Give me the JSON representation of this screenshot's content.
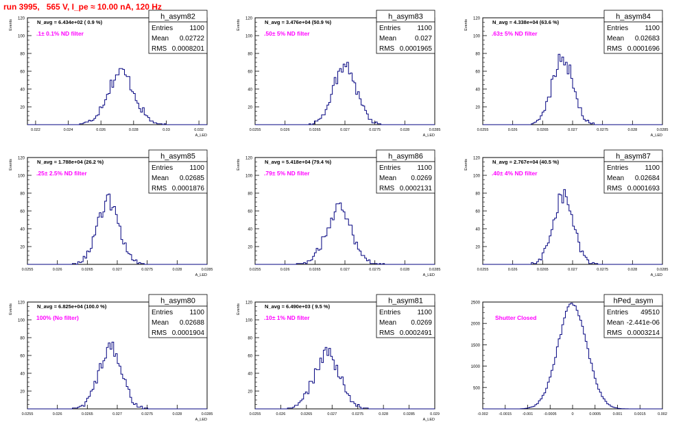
{
  "header": {
    "title": "run 3995,   565 V, I_pe ≈ 10.00 nA, 120 Hz"
  },
  "colors": {
    "histogram": "#00007f",
    "annotation": "#ff00ff",
    "title": "#ff0000"
  },
  "chart_data": [
    {
      "type": "bar",
      "title": "h_asym82",
      "ylabel": "Events",
      "xlabel": "A_LED",
      "xlim": [
        0.0215,
        0.0325
      ],
      "ylim": [
        0,
        120
      ],
      "xticks": [
        0.022,
        0.024,
        0.026,
        0.028,
        0.03,
        0.032
      ],
      "xtick_labels": [
        "0.022",
        "0.024",
        "0.026",
        "0.028",
        "0.03",
        "0.032"
      ],
      "yticks": [
        20,
        40,
        60,
        80,
        100,
        120
      ],
      "stats": {
        "entries": "1100",
        "mean": "0.02722",
        "rms": "0.0008201"
      },
      "n_avg": "N_avg = 6.434e+02 ( 0.9 %)",
      "annotation": ".1± 0.1% ND filter"
    },
    {
      "type": "bar",
      "title": "h_asym83",
      "ylabel": "Events",
      "xlabel": "A_LED",
      "xlim": [
        0.0255,
        0.0285
      ],
      "ylim": [
        0,
        120
      ],
      "xticks": [
        0.0255,
        0.026,
        0.0265,
        0.027,
        0.0275,
        0.028,
        0.0285
      ],
      "xtick_labels": [
        "0.0255",
        "0.026",
        "0.0265",
        "0.027",
        "0.0275",
        "0.028",
        "0.0285"
      ],
      "yticks": [
        20,
        40,
        60,
        80,
        100,
        120
      ],
      "stats": {
        "entries": "1100",
        "mean": "0.027",
        "rms": "0.0001965"
      },
      "n_avg": "N_avg = 3.476e+04 (50.9 %)",
      "annotation": ".50± 5% ND filter"
    },
    {
      "type": "bar",
      "title": "h_asym84",
      "ylabel": "Events",
      "xlabel": "A_LED",
      "xlim": [
        0.0255,
        0.0285
      ],
      "ylim": [
        0,
        120
      ],
      "xticks": [
        0.0255,
        0.026,
        0.0265,
        0.027,
        0.0275,
        0.028,
        0.0285
      ],
      "xtick_labels": [
        "0.0255",
        "0.026",
        "0.0265",
        "0.027",
        "0.0275",
        "0.028",
        "0.0285"
      ],
      "yticks": [
        20,
        40,
        60,
        80,
        100,
        120
      ],
      "stats": {
        "entries": "1100",
        "mean": "0.02683",
        "rms": "0.0001696"
      },
      "n_avg": "N_avg = 4.338e+04 (63.6 %)",
      "annotation": ".63± 5% ND filter"
    },
    {
      "type": "bar",
      "title": "h_asym85",
      "ylabel": "Events",
      "xlabel": "A_LED",
      "xlim": [
        0.0255,
        0.0285
      ],
      "ylim": [
        0,
        120
      ],
      "xticks": [
        0.0255,
        0.026,
        0.0265,
        0.027,
        0.0275,
        0.028,
        0.0285
      ],
      "xtick_labels": [
        "0.0255",
        "0.026",
        "0.0265",
        "0.027",
        "0.0275",
        "0.028",
        "0.0285"
      ],
      "yticks": [
        20,
        40,
        60,
        80,
        100,
        120
      ],
      "stats": {
        "entries": "1100",
        "mean": "0.02685",
        "rms": "0.0001876"
      },
      "n_avg": "N_avg = 1.788e+04 (26.2 %)",
      "annotation": ".25± 2.5% ND filter"
    },
    {
      "type": "bar",
      "title": "h_asym86",
      "ylabel": "Events",
      "xlabel": "A_LED",
      "xlim": [
        0.0255,
        0.0285
      ],
      "ylim": [
        0,
        120
      ],
      "xticks": [
        0.0255,
        0.026,
        0.0265,
        0.027,
        0.0275,
        0.028,
        0.0285
      ],
      "xtick_labels": [
        "0.0255",
        "0.026",
        "0.0265",
        "0.027",
        "0.0275",
        "0.028",
        "0.0285"
      ],
      "yticks": [
        20,
        40,
        60,
        80,
        100,
        120
      ],
      "stats": {
        "entries": "1100",
        "mean": "0.0269",
        "rms": "0.0002131"
      },
      "n_avg": "N_avg = 5.418e+04 (79.4 %)",
      "annotation": ".79± 5% ND filter"
    },
    {
      "type": "bar",
      "title": "h_asym87",
      "ylabel": "Events",
      "xlabel": "A_LED",
      "xlim": [
        0.0255,
        0.0285
      ],
      "ylim": [
        0,
        120
      ],
      "xticks": [
        0.0255,
        0.026,
        0.0265,
        0.027,
        0.0275,
        0.028,
        0.0285
      ],
      "xtick_labels": [
        "0.0255",
        "0.026",
        "0.0265",
        "0.027",
        "0.0275",
        "0.028",
        "0.0285"
      ],
      "yticks": [
        20,
        40,
        60,
        80,
        100,
        120
      ],
      "stats": {
        "entries": "1100",
        "mean": "0.02684",
        "rms": "0.0001693"
      },
      "n_avg": "N_avg = 2.767e+04 (40.5 %)",
      "annotation": ".40± 4% ND filter"
    },
    {
      "type": "bar",
      "title": "h_asym80",
      "ylabel": "Events",
      "xlabel": "A_LED",
      "xlim": [
        0.0255,
        0.0285
      ],
      "ylim": [
        0,
        120
      ],
      "xticks": [
        0.0255,
        0.026,
        0.0265,
        0.027,
        0.0275,
        0.028,
        0.0285
      ],
      "xtick_labels": [
        "0.0255",
        "0.026",
        "0.0265",
        "0.027",
        "0.0275",
        "0.028",
        "0.0285"
      ],
      "yticks": [
        20,
        40,
        60,
        80,
        100,
        120
      ],
      "stats": {
        "entries": "1100",
        "mean": "0.02688",
        "rms": "0.0001904"
      },
      "n_avg": "N_avg = 6.825e+04 (100.0 %)",
      "annotation": "100% (No filter)"
    },
    {
      "type": "bar",
      "title": "h_asym81",
      "ylabel": "Events",
      "xlabel": "A_LED",
      "xlim": [
        0.0255,
        0.029
      ],
      "ylim": [
        0,
        120
      ],
      "xticks": [
        0.0255,
        0.026,
        0.0265,
        0.027,
        0.0275,
        0.028,
        0.0285,
        0.029
      ],
      "xtick_labels": [
        "0.0255",
        "0.026",
        "0.0265",
        "0.027",
        "0.0275",
        "0.028",
        "0.0285",
        "0.029"
      ],
      "yticks": [
        20,
        40,
        60,
        80,
        100,
        120
      ],
      "stats": {
        "entries": "1100",
        "mean": "0.0269",
        "rms": "0.0002491"
      },
      "n_avg": "N_avg = 6.490e+03 ( 9.5 %)",
      "annotation": ".10± 1% ND filter"
    },
    {
      "type": "bar",
      "title": "hPed_asym",
      "ylabel": "",
      "xlabel": "",
      "xlim": [
        -0.002,
        0.002
      ],
      "ylim": [
        0,
        2500
      ],
      "xticks": [
        -0.002,
        -0.0015,
        -0.001,
        -0.0005,
        0,
        0.0005,
        0.001,
        0.0015,
        0.002
      ],
      "xtick_labels": [
        "-0.002",
        "-0.0015",
        "-0.001",
        "-0.0005",
        "0",
        "0.0005",
        "0.001",
        "0.0015",
        "0.002"
      ],
      "yticks": [
        500,
        1000,
        1500,
        2000,
        2500
      ],
      "stats": {
        "entries": "49510",
        "mean": "-2.441e-06",
        "rms": "0.0003214"
      },
      "n_avg": "",
      "annotation": "Shutter Closed"
    }
  ]
}
